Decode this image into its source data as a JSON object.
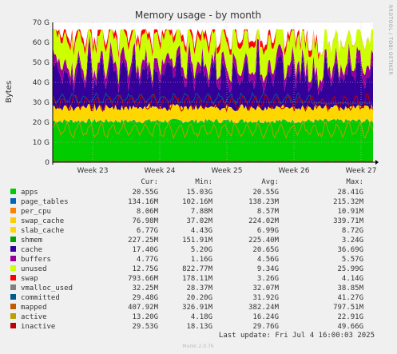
{
  "chart_data": {
    "type": "area",
    "title": "Memory usage - by month",
    "ylabel": "Bytes",
    "side_label": "RRDTOOL / TOBI OETIKER",
    "ylim": [
      0,
      70
    ],
    "y_ticks": [
      "0",
      "10 G",
      "20 G",
      "30 G",
      "40 G",
      "50 G",
      "60 G",
      "70 G"
    ],
    "x_ticks": [
      "Week 23",
      "Week 24",
      "Week 25",
      "Week 26",
      "Week 27"
    ],
    "stack_order": [
      "apps",
      "page_tables",
      "per_cpu",
      "swap_cache",
      "slab_cache",
      "cache",
      "buffers",
      "unused",
      "swap"
    ],
    "stack_approx_top_G": [
      20.55,
      20.68,
      20.69,
      20.77,
      27.5,
      45.0,
      49.8,
      62.8,
      65.7
    ],
    "line_series": [
      "shmem",
      "vmalloc_used",
      "committed",
      "mapped",
      "active",
      "inactive"
    ],
    "columns": [
      "Cur:",
      "Min:",
      "Avg:",
      "Max:"
    ],
    "legend": [
      {
        "name": "apps",
        "color": "#00cc00",
        "cur": "20.55G",
        "min": "15.03G",
        "avg": "20.55G",
        "max": "28.41G"
      },
      {
        "name": "page_tables",
        "color": "#0066b3",
        "cur": "134.16M",
        "min": "102.16M",
        "avg": "138.23M",
        "max": "215.32M"
      },
      {
        "name": "per_cpu",
        "color": "#ff8000",
        "cur": "8.06M",
        "min": "7.88M",
        "avg": "8.57M",
        "max": "10.91M"
      },
      {
        "name": "swap_cache",
        "color": "#ffcc00",
        "cur": "76.98M",
        "min": "37.02M",
        "avg": "224.02M",
        "max": "339.71M"
      },
      {
        "name": "slab_cache",
        "color": "#ffd700",
        "cur": "6.77G",
        "min": "4.43G",
        "avg": "6.99G",
        "max": "8.72G"
      },
      {
        "name": "shmem",
        "color": "#00a000",
        "cur": "227.25M",
        "min": "151.91M",
        "avg": "225.40M",
        "max": "3.24G"
      },
      {
        "name": "cache",
        "color": "#330099",
        "cur": "17.40G",
        "min": "5.20G",
        "avg": "20.65G",
        "max": "36.69G"
      },
      {
        "name": "buffers",
        "color": "#990099",
        "cur": "4.77G",
        "min": "1.16G",
        "avg": "4.56G",
        "max": "5.57G"
      },
      {
        "name": "unused",
        "color": "#ccff00",
        "cur": "12.75G",
        "min": "822.77M",
        "avg": "9.34G",
        "max": "25.99G"
      },
      {
        "name": "swap",
        "color": "#ff0000",
        "cur": "793.66M",
        "min": "178.11M",
        "avg": "3.26G",
        "max": "4.14G"
      },
      {
        "name": "vmalloc_used",
        "color": "#808080",
        "cur": "32.25M",
        "min": "28.37M",
        "avg": "32.07M",
        "max": "38.85M"
      },
      {
        "name": "committed",
        "color": "#005a8c",
        "cur": "29.48G",
        "min": "20.20G",
        "avg": "31.92G",
        "max": "41.27G"
      },
      {
        "name": "mapped",
        "color": "#c05a00",
        "cur": "407.92M",
        "min": "326.91M",
        "avg": "382.24M",
        "max": "797.51M"
      },
      {
        "name": "active",
        "color": "#b8a000",
        "cur": "13.20G",
        "min": "4.18G",
        "avg": "16.24G",
        "max": "22.91G"
      },
      {
        "name": "inactive",
        "color": "#c00000",
        "cur": "29.53G",
        "min": "18.13G",
        "avg": "29.76G",
        "max": "49.66G"
      }
    ],
    "last_update": "Last update: Fri Jul  4 16:00:03 2025",
    "footer": "Munin 2.0.76"
  }
}
